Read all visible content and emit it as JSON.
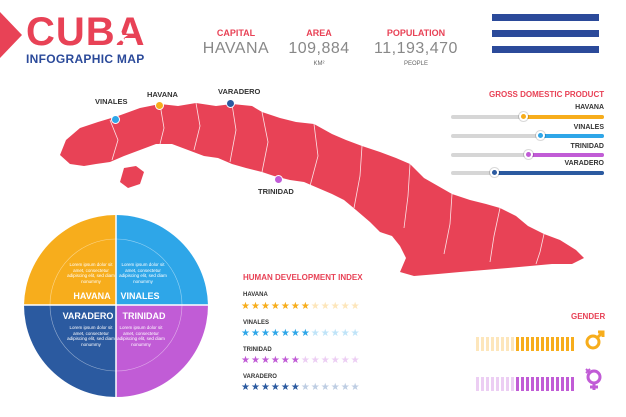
{
  "header": {
    "title": "CUBA",
    "subtitle": "INFOGRAPHIC MAP"
  },
  "stats": [
    {
      "label": "CAPITAL",
      "value": "HAVANA",
      "unit": ""
    },
    {
      "label": "AREA",
      "value": "109,884",
      "unit": "KM²"
    },
    {
      "label": "POPULATION",
      "value": "11,193,470",
      "unit": "PEOPLE"
    }
  ],
  "map": {
    "cities": [
      {
        "name": "VINALES",
        "color": "#2ea6e8"
      },
      {
        "name": "HAVANA",
        "color": "#f7ad1c"
      },
      {
        "name": "VARADERO",
        "color": "#2b5aa0"
      },
      {
        "name": "TRINIDAD",
        "color": "#c15cd6"
      }
    ],
    "color": "#e84256"
  },
  "gdp": {
    "title": "GROSS DOMESTIC PRODUCT",
    "rows": [
      {
        "label": "HAVANA",
        "value": 0.53,
        "color": "#f7ad1c"
      },
      {
        "label": "VINALES",
        "value": 0.42,
        "color": "#2ea6e8"
      },
      {
        "label": "TRINIDAD",
        "value": 0.5,
        "color": "#c15cd6"
      },
      {
        "label": "VARADERO",
        "value": 0.72,
        "color": "#2b5aa0"
      }
    ]
  },
  "hdi": {
    "title": "HUMAN DEVELOPMENT INDEX",
    "rows": [
      {
        "label": "HAVANA",
        "stars": 7,
        "total": 12,
        "color": "#f7ad1c"
      },
      {
        "label": "VINALES",
        "stars": 7,
        "total": 12,
        "color": "#2ea6e8"
      },
      {
        "label": "TRINIDAD",
        "stars": 6,
        "total": 12,
        "color": "#c15cd6"
      },
      {
        "label": "VARADERO",
        "stars": 6,
        "total": 12,
        "color": "#2b5aa0"
      }
    ]
  },
  "gender": {
    "title": "GENDER",
    "male_color": "#f7ad1c",
    "female_color": "#c15cd6",
    "male_icon": "male-icon",
    "female_icon": "female-icon"
  },
  "pie": {
    "quadrants": [
      {
        "name": "HAVANA",
        "color": "#f7ad1c",
        "text": "Lorem ipsum dolor sit amet, consectetur adipiscing elit, sed diam nonummy"
      },
      {
        "name": "VINALES",
        "color": "#2ea6e8",
        "text": "Lorem ipsum dolor sit amet, consectetur adipiscing elit, sed diam nonummy"
      },
      {
        "name": "VARADERO",
        "color": "#2b5aa0",
        "text": "Lorem ipsum dolor sit amet, consectetur adipiscing elit, sed diam nonummy"
      },
      {
        "name": "TRINIDAD",
        "color": "#c15cd6",
        "text": "Lorem ipsum dolor sit amet, consectetur adipiscing elit, sed diam nonummy"
      }
    ]
  }
}
